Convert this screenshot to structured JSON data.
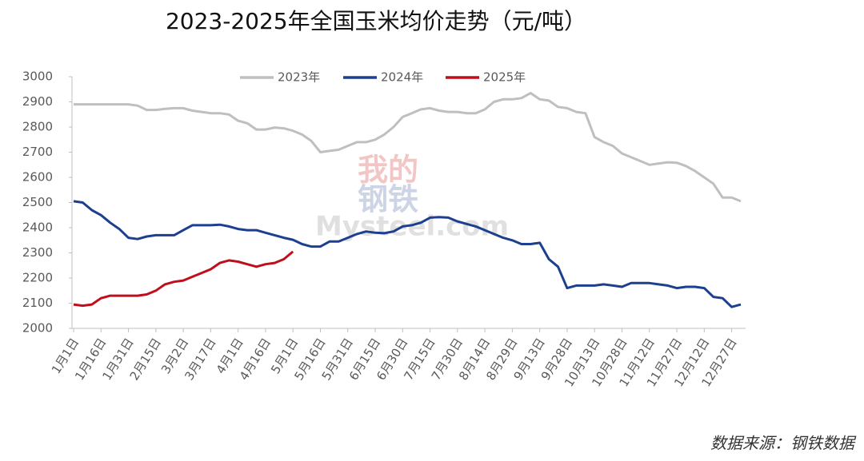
{
  "chart_data": {
    "type": "line",
    "title": "2023-2025年全国玉米均价走势（元/吨）",
    "source": "数据来源：钢铁数据",
    "watermark": [
      "我的",
      "钢铁",
      "Mysteel.com"
    ],
    "categories": [
      "1月1日",
      null,
      null,
      "1月16日",
      null,
      null,
      "1月31日",
      null,
      null,
      "2月15日",
      null,
      null,
      "3月2日",
      null,
      null,
      "3月17日",
      null,
      null,
      "4月1日",
      null,
      null,
      "4月16日",
      null,
      null,
      "5月1日",
      null,
      null,
      "5月16日",
      null,
      null,
      "5月31日",
      null,
      null,
      "6月15日",
      null,
      null,
      "6月30日",
      null,
      null,
      "7月15日",
      null,
      null,
      "7月30日",
      null,
      null,
      "8月14日",
      null,
      null,
      "8月29日",
      null,
      null,
      "9月13日",
      null,
      null,
      "9月28日",
      null,
      null,
      "10月13日",
      null,
      null,
      "10月28日",
      null,
      null,
      "11月12日",
      null,
      null,
      "11月27日",
      null,
      null,
      "12月12日",
      null,
      null,
      "12月27日",
      null
    ],
    "series": [
      {
        "name": "2023年",
        "color": "#bfbfbf",
        "values": [
          2890,
          2890,
          2890,
          2890,
          2890,
          2890,
          2890,
          2885,
          2868,
          2868,
          2872,
          2875,
          2875,
          2865,
          2860,
          2855,
          2855,
          2850,
          2825,
          2815,
          2790,
          2790,
          2798,
          2795,
          2785,
          2770,
          2745,
          2700,
          2705,
          2710,
          2725,
          2740,
          2740,
          2750,
          2770,
          2800,
          2840,
          2855,
          2870,
          2875,
          2865,
          2860,
          2860,
          2855,
          2855,
          2870,
          2900,
          2910,
          2910,
          2915,
          2935,
          2910,
          2905,
          2880,
          2875,
          2860,
          2855,
          2760,
          2740,
          2725,
          2695,
          2680,
          2665,
          2650,
          2655,
          2660,
          2658,
          2645,
          2625,
          2600,
          2575,
          2520,
          2520,
          2505
        ]
      },
      {
        "name": "2024年",
        "color": "#1c3f8f",
        "values": [
          2505,
          2500,
          2470,
          2450,
          2420,
          2395,
          2360,
          2355,
          2365,
          2370,
          2370,
          2370,
          2390,
          2410,
          2410,
          2410,
          2412,
          2405,
          2395,
          2390,
          2390,
          2380,
          2370,
          2360,
          2352,
          2335,
          2325,
          2325,
          2345,
          2345,
          2360,
          2375,
          2385,
          2380,
          2378,
          2385,
          2405,
          2410,
          2420,
          2440,
          2442,
          2440,
          2425,
          2415,
          2405,
          2390,
          2375,
          2360,
          2350,
          2335,
          2335,
          2340,
          2275,
          2245,
          2160,
          2170,
          2170,
          2170,
          2175,
          2170,
          2165,
          2180,
          2180,
          2180,
          2175,
          2170,
          2160,
          2165,
          2165,
          2160,
          2125,
          2120,
          2085,
          2095
        ]
      },
      {
        "name": "2025年",
        "color": "#c00f1c",
        "values": [
          2095,
          2090,
          2095,
          2120,
          2130,
          2130,
          2130,
          2130,
          2135,
          2150,
          2175,
          2185,
          2190,
          2205,
          2220,
          2235,
          2260,
          2270,
          2265,
          2255,
          2245,
          2255,
          2260,
          2275,
          2305,
          null,
          null,
          null,
          null,
          null,
          null,
          null,
          null,
          null,
          null,
          null,
          null,
          null,
          null,
          null,
          null,
          null,
          null,
          null,
          null,
          null,
          null,
          null,
          null,
          null,
          null,
          null,
          null,
          null,
          null,
          null,
          null,
          null,
          null,
          null,
          null,
          null,
          null,
          null,
          null,
          null,
          null,
          null,
          null,
          null,
          null,
          null,
          null,
          null
        ]
      }
    ],
    "ylim": [
      2000,
      3000
    ],
    "yticks": [
      2000,
      2100,
      2200,
      2300,
      2400,
      2500,
      2600,
      2700,
      2800,
      2900,
      3000
    ],
    "grid": false,
    "legend": "top"
  }
}
